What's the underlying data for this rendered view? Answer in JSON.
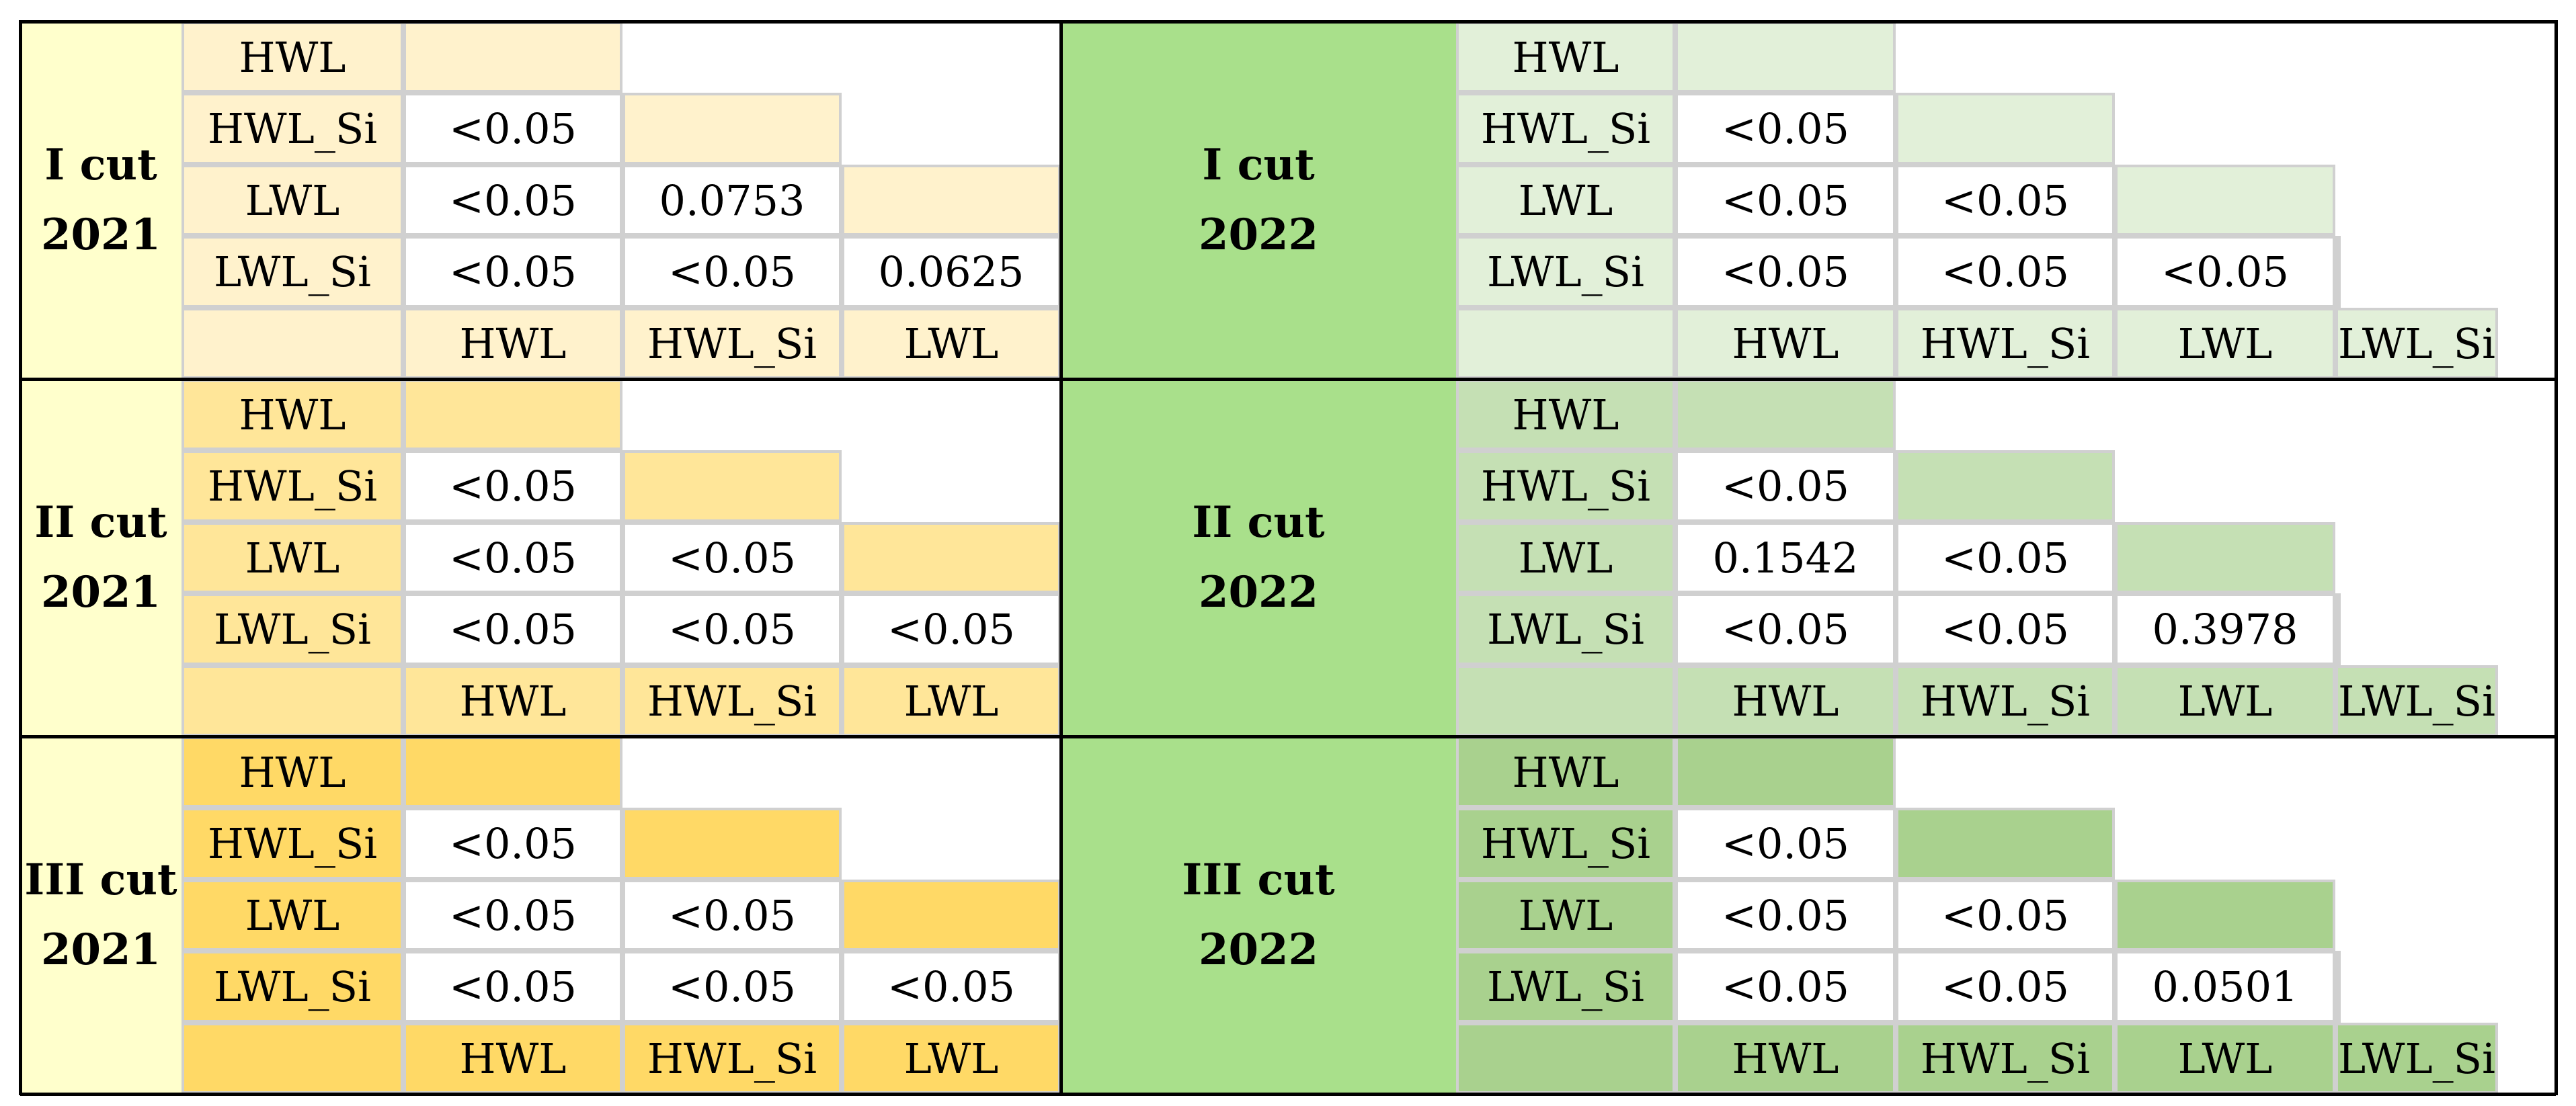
{
  "row_labels": [
    "HWL",
    "HWL_Si",
    "LWL",
    "LWL_Si"
  ],
  "column_labels": [
    "HWL",
    "HWL_Si",
    "LWL",
    "LWL_Si"
  ],
  "panels": [
    {
      "cut": "I cut",
      "year": "2021",
      "column": 0,
      "row": 0,
      "colors": {
        "label": "#ffffcc",
        "tint": "#fff2cc"
      },
      "values": [
        [
          "<0.05"
        ],
        [
          "<0.05",
          "0.0753"
        ],
        [
          "<0.05",
          "<0.05",
          "0.0625"
        ]
      ]
    },
    {
      "cut": "II cut",
      "year": "2021",
      "column": 0,
      "row": 1,
      "colors": {
        "label": "#ffffcc",
        "tint": "#ffe699"
      },
      "values": [
        [
          "<0.05"
        ],
        [
          "<0.05",
          "<0.05"
        ],
        [
          "<0.05",
          "<0.05",
          "<0.05"
        ]
      ]
    },
    {
      "cut": "III cut",
      "year": "2021",
      "column": 0,
      "row": 2,
      "colors": {
        "label": "#ffffcc",
        "tint": "#ffd966"
      },
      "values": [
        [
          "<0.05"
        ],
        [
          "<0.05",
          "<0.05"
        ],
        [
          "<0.05",
          "<0.05",
          "<0.05"
        ]
      ]
    },
    {
      "cut": "I cut",
      "year": "2022",
      "column": 1,
      "row": 0,
      "colors": {
        "label": "#a9e08b",
        "tint": "#e2f0d9"
      },
      "values": [
        [
          "<0.05"
        ],
        [
          "<0.05",
          "<0.05"
        ],
        [
          "<0.05",
          "<0.05",
          "<0.05"
        ]
      ]
    },
    {
      "cut": "II cut",
      "year": "2022",
      "column": 1,
      "row": 1,
      "colors": {
        "label": "#a9e08b",
        "tint": "#c5e0b4"
      },
      "values": [
        [
          "<0.05"
        ],
        [
          "0.1542",
          "<0.05"
        ],
        [
          "<0.05",
          "<0.05",
          "0.3978"
        ]
      ]
    },
    {
      "cut": "III cut",
      "year": "2022",
      "column": 1,
      "row": 2,
      "colors": {
        "label": "#a9e08b",
        "tint": "#a9d18e"
      },
      "values": [
        [
          "<0.05"
        ],
        [
          "<0.05",
          "<0.05"
        ],
        [
          "<0.05",
          "<0.05",
          "0.0501"
        ]
      ]
    }
  ]
}
